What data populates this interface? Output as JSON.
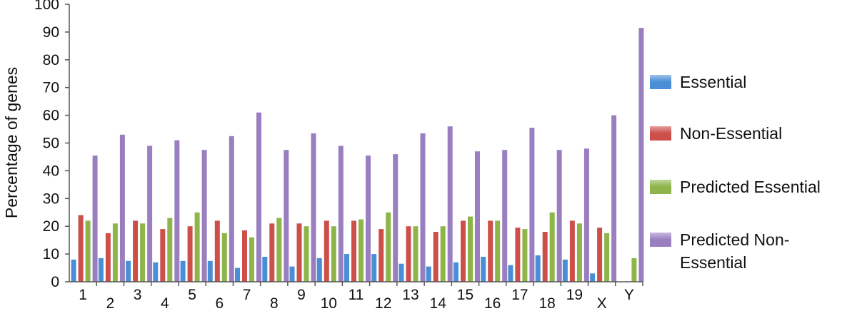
{
  "chart_data": {
    "type": "bar",
    "ylabel": "Percentage of genes",
    "ylim": [
      0,
      100
    ],
    "yticks": [
      0,
      10,
      20,
      30,
      40,
      50,
      60,
      70,
      80,
      90,
      100
    ],
    "grid": false,
    "legend_position": "right",
    "categories": [
      "1",
      "2",
      "3",
      "4",
      "5",
      "6",
      "7",
      "8",
      "9",
      "10",
      "11",
      "12",
      "13",
      "14",
      "15",
      "16",
      "17",
      "18",
      "19",
      "X",
      "Y"
    ],
    "series": [
      {
        "name": "Essential",
        "color": "#4a8fd6",
        "values": [
          8,
          8.5,
          7.5,
          7,
          7.5,
          7.5,
          5,
          9,
          5.5,
          8.5,
          10,
          10,
          6.5,
          5.5,
          7,
          9,
          6,
          9.5,
          8,
          3,
          0
        ]
      },
      {
        "name": "Non-Essential",
        "color": "#cc4f4a",
        "values": [
          24,
          17.5,
          22,
          19,
          20,
          22,
          18.5,
          21,
          21,
          22,
          22,
          19,
          20,
          18,
          22,
          22,
          19.5,
          18,
          22,
          19.5,
          0
        ]
      },
      {
        "name": "Predicted Essential",
        "color": "#8db54a",
        "values": [
          22,
          21,
          21,
          23,
          25,
          17.5,
          16,
          23,
          20,
          20,
          22.5,
          25,
          20,
          20,
          23.5,
          22,
          19,
          25,
          21,
          17.5,
          8.5
        ]
      },
      {
        "name": "Predicted Non-Essential",
        "color": "#9a7fc0",
        "values": [
          45.5,
          53,
          49,
          51,
          47.5,
          52.5,
          61,
          47.5,
          53.5,
          49,
          45.5,
          46,
          53.5,
          56,
          47,
          47.5,
          55.5,
          47.5,
          48,
          60,
          91.5
        ]
      }
    ],
    "legend_entries": [
      "Essential",
      "Non-Essential",
      "Predicted Essential",
      "Predicted Non-\nEssential"
    ]
  }
}
